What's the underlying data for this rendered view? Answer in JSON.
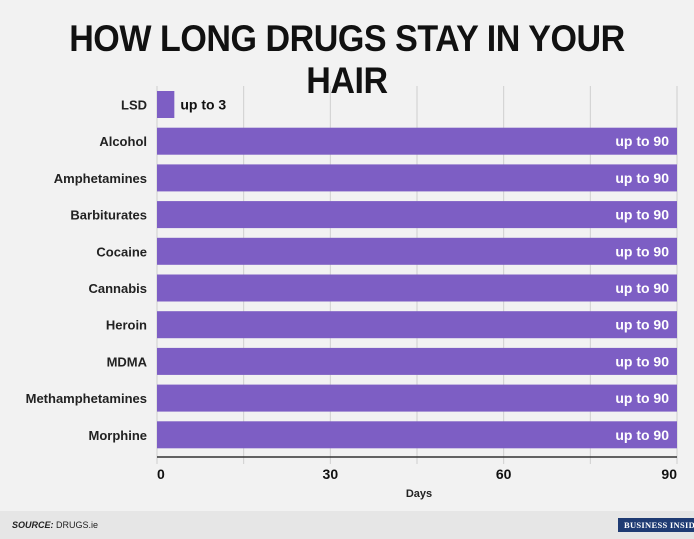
{
  "chart_data": {
    "type": "bar",
    "orientation": "horizontal",
    "title": "HOW LONG DRUGS STAY IN YOUR HAIR",
    "xlabel": "Days",
    "ylabel": "",
    "xlim": [
      0,
      90
    ],
    "xticks": [
      "0",
      "30",
      "60",
      "90"
    ],
    "grid": true,
    "categories": [
      "LSD",
      "Alcohol",
      "Amphetamines",
      "Barbiturates",
      "Cocaine",
      "Cannabis",
      "Heroin",
      "MDMA",
      "Methamphetamines",
      "Morphine"
    ],
    "values": [
      3,
      90,
      90,
      90,
      90,
      90,
      90,
      90,
      90,
      90
    ],
    "data_labels": [
      "up to 3",
      "up to 90",
      "up to 90",
      "up to 90",
      "up to 90",
      "up to 90",
      "up to 90",
      "up to 90",
      "up to 90",
      "up to 90"
    ],
    "bar_color": "#7d5ec4"
  },
  "footer": {
    "source_label": "SOURCE:",
    "source_value": " DRUGS.ie",
    "logo_text": "BUSINESS INSIDER"
  }
}
